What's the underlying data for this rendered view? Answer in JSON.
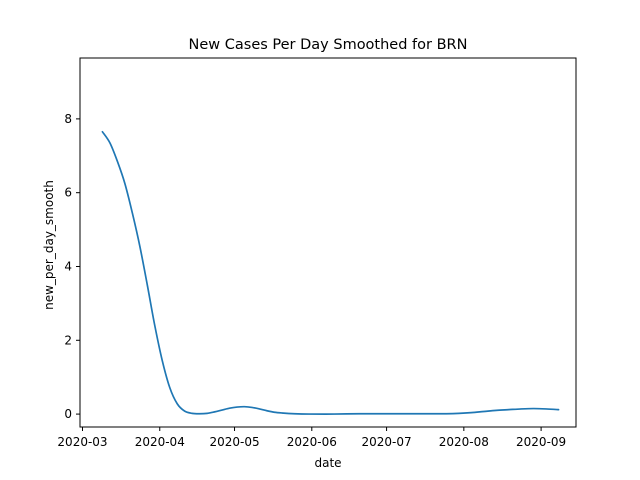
{
  "chart_data": {
    "type": "line",
    "title": "New Cases Per Day Smoothed for BRN",
    "xlabel": "date",
    "ylabel": "new_per_day_smooth",
    "x_axis_type": "date",
    "xlim": [
      "2020-02-29",
      "2020-09-15"
    ],
    "ylim": [
      -0.35,
      9.65
    ],
    "grid": false,
    "line_color": "#1f77b4",
    "xticks": [
      "2020-03-01",
      "2020-04-01",
      "2020-05-01",
      "2020-06-01",
      "2020-07-01",
      "2020-08-01",
      "2020-09-01"
    ],
    "xtick_labels": [
      "2020-03",
      "2020-04",
      "2020-05",
      "2020-06",
      "2020-07",
      "2020-08",
      "2020-09"
    ],
    "yticks": [
      0,
      2,
      4,
      6,
      8
    ],
    "ytick_labels": [
      "0",
      "2",
      "4",
      "6",
      "8"
    ],
    "series": [
      {
        "x": [
          "2020-03-09",
          "2020-03-12",
          "2020-03-15",
          "2020-03-18",
          "2020-03-21",
          "2020-03-24",
          "2020-03-27",
          "2020-03-30",
          "2020-04-02",
          "2020-04-05",
          "2020-04-08",
          "2020-04-11",
          "2020-04-14",
          "2020-04-17",
          "2020-04-20",
          "2020-04-23",
          "2020-04-26",
          "2020-04-29",
          "2020-05-02",
          "2020-05-05",
          "2020-05-08",
          "2020-05-11",
          "2020-05-14",
          "2020-05-17",
          "2020-05-20",
          "2020-05-25",
          "2020-05-31",
          "2020-06-10",
          "2020-06-20",
          "2020-06-30",
          "2020-07-10",
          "2020-07-20",
          "2020-07-25",
          "2020-07-30",
          "2020-08-04",
          "2020-08-09",
          "2020-08-14",
          "2020-08-19",
          "2020-08-24",
          "2020-08-29",
          "2020-09-03",
          "2020-09-08"
        ],
        "y": [
          7.65,
          7.35,
          6.85,
          6.25,
          5.45,
          4.55,
          3.5,
          2.4,
          1.45,
          0.72,
          0.28,
          0.08,
          0.02,
          0.01,
          0.02,
          0.06,
          0.11,
          0.16,
          0.19,
          0.2,
          0.18,
          0.14,
          0.09,
          0.05,
          0.03,
          0.01,
          0.0,
          0.0,
          0.01,
          0.01,
          0.01,
          0.01,
          0.01,
          0.02,
          0.04,
          0.07,
          0.1,
          0.12,
          0.14,
          0.15,
          0.14,
          0.12
        ]
      }
    ]
  }
}
